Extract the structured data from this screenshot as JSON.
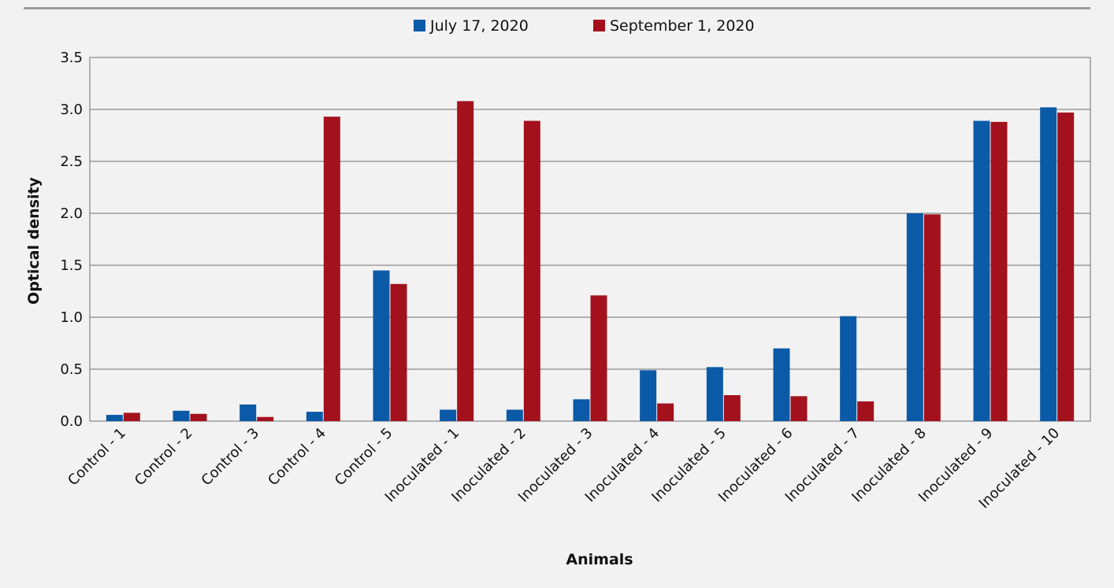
{
  "chart_data": {
    "type": "bar",
    "title": "",
    "xlabel": "Animals",
    "ylabel": "Optical density",
    "ylim": [
      0,
      3.5
    ],
    "yticks": [
      "0.0",
      "0.5",
      "1.0",
      "1.5",
      "2.0",
      "2.5",
      "3.0",
      "3.5"
    ],
    "grid": true,
    "legend_position": "top-center",
    "categories": [
      "Control - 1",
      "Control - 2",
      "Control - 3",
      "Control - 4",
      "Control - 5",
      "Inoculated - 1",
      "Inoculated - 2",
      "Inoculated - 3",
      "Inoculated - 4",
      "Inoculated - 5",
      "Inoculated - 6",
      "Inoculated - 7",
      "Inoculated - 8",
      "Inoculated - 9",
      "Inoculated - 10"
    ],
    "series": [
      {
        "name": "July 17, 2020",
        "color": "#0a5aa8",
        "values": [
          0.06,
          0.1,
          0.16,
          0.09,
          1.45,
          0.11,
          0.11,
          0.21,
          0.49,
          0.52,
          0.7,
          1.01,
          2.0,
          2.89,
          3.02
        ]
      },
      {
        "name": "September 1, 2020",
        "color": "#a3111d",
        "values": [
          0.08,
          0.07,
          0.04,
          2.93,
          1.32,
          3.08,
          2.89,
          1.21,
          0.17,
          0.25,
          0.24,
          0.19,
          1.99,
          2.88,
          2.97
        ]
      }
    ]
  }
}
